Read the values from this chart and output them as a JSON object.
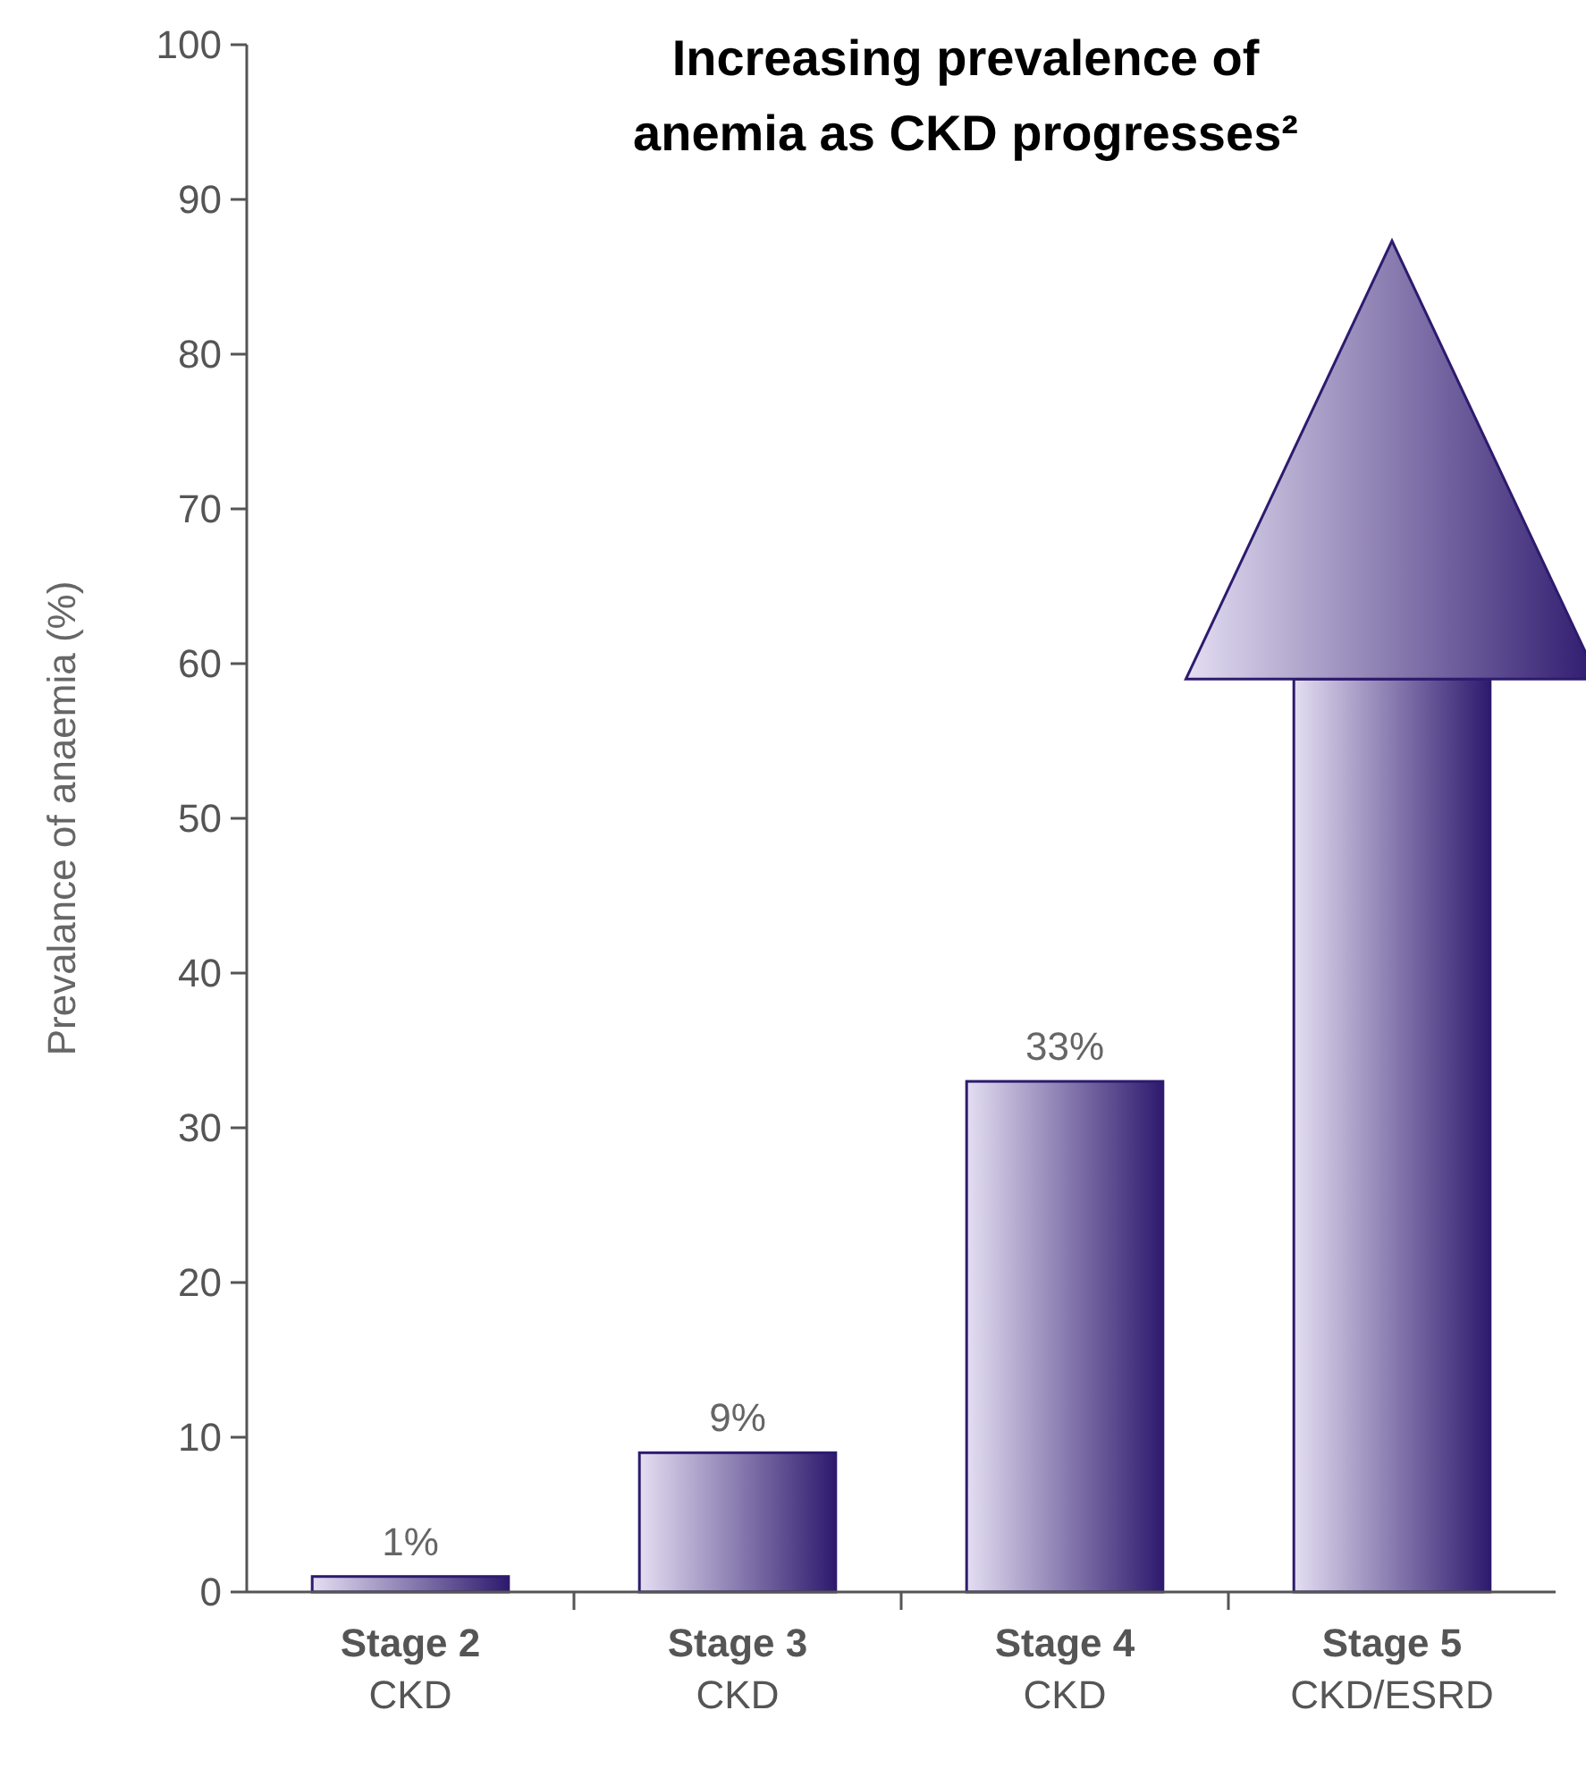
{
  "chart_data": {
    "type": "bar",
    "title": "Increasing prevalence of\nanemia as CKD progresses²",
    "ylabel": "Prevalance of anaemia (%)",
    "categories": [
      "Stage 2\nCKD",
      "Stage 3\nCKD",
      "Stage 4\nCKD",
      "Stage 5\nCKD/ESRD"
    ],
    "values": [
      1,
      9,
      33,
      59
    ],
    "value_labels": [
      "1%",
      "9%",
      "33%",
      null
    ],
    "color": "#2e1a6e",
    "ylim": [
      0,
      100
    ],
    "yticks": [
      0,
      10,
      20,
      30,
      40,
      50,
      60,
      70,
      80,
      90,
      100
    ],
    "grid": false
  }
}
